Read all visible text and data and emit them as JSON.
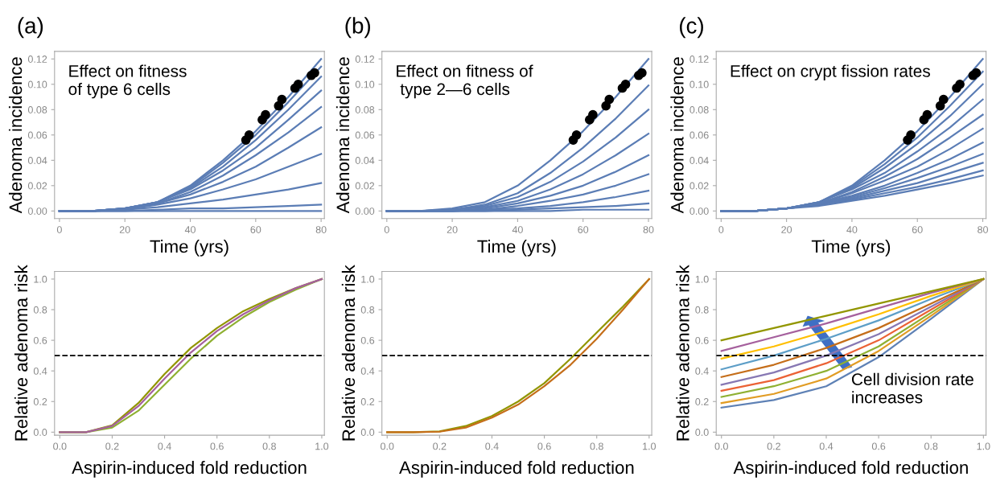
{
  "chart_data": [
    {
      "type": "line",
      "title": "(a)",
      "subtitle": "Effect on fitness\nof type 6 cells",
      "xlabel": "Time (yrs)",
      "ylabel": "Adenoma incidence",
      "xlim": [
        -1.5,
        81
      ],
      "ylim": [
        -0.006,
        0.126
      ],
      "xticks": [
        0,
        20,
        40,
        60,
        80
      ],
      "yticks": [
        {
          "value": 0,
          "label": "0.00"
        },
        {
          "value": 0.02,
          "label": "0.02"
        },
        {
          "value": 0.04,
          "label": "0.04"
        },
        {
          "value": 0.06,
          "label": "0.06"
        },
        {
          "value": 0.08,
          "label": "0.08"
        },
        {
          "value": 0.1,
          "label": "0.10"
        },
        {
          "value": 0.12,
          "label": "0.12"
        }
      ],
      "marker": "none",
      "line_style": "solid",
      "x": [
        0,
        10,
        20,
        30,
        40,
        50,
        60,
        70,
        80
      ],
      "series": [
        {
          "color": "#5b7db5",
          "values": [
            0,
            0,
            0.002,
            0.007,
            0.02,
            0.04,
            0.063,
            0.09,
            0.12
          ]
        },
        {
          "color": "#5b7db5",
          "values": [
            0,
            0,
            0.002,
            0.007,
            0.019,
            0.038,
            0.06,
            0.086,
            0.114
          ]
        },
        {
          "color": "#5b7db5",
          "values": [
            0,
            0,
            0.002,
            0.007,
            0.018,
            0.035,
            0.056,
            0.08,
            0.106
          ]
        },
        {
          "color": "#5b7db5",
          "values": [
            0,
            0,
            0.002,
            0.007,
            0.017,
            0.032,
            0.05,
            0.072,
            0.095
          ]
        },
        {
          "color": "#5b7db5",
          "values": [
            0,
            0,
            0.002,
            0.006,
            0.015,
            0.028,
            0.044,
            0.062,
            0.082
          ]
        },
        {
          "color": "#5b7db5",
          "values": [
            0,
            0,
            0.002,
            0.006,
            0.013,
            0.023,
            0.035,
            0.05,
            0.066
          ]
        },
        {
          "color": "#5b7db5",
          "values": [
            0,
            0,
            0.001,
            0.005,
            0.01,
            0.017,
            0.025,
            0.035,
            0.045
          ]
        },
        {
          "color": "#5b7db5",
          "values": [
            0,
            0,
            0.001,
            0.003,
            0.006,
            0.009,
            0.013,
            0.017,
            0.022
          ]
        },
        {
          "color": "#5b7db5",
          "values": [
            0,
            0,
            0,
            0.001,
            0.002,
            0.002,
            0.003,
            0.004,
            0.005
          ]
        },
        {
          "color": "#5b7db5",
          "values": [
            0,
            0,
            0,
            0,
            0,
            0,
            0,
            0,
            0
          ]
        },
        {
          "type": "scatter",
          "marker": "circle",
          "color": "#000000",
          "x": [
            57,
            58,
            62,
            63,
            67,
            68,
            72,
            73,
            77,
            78
          ],
          "values": [
            0.056,
            0.06,
            0.072,
            0.076,
            0.083,
            0.088,
            0.097,
            0.1,
            0.107,
            0.109
          ]
        }
      ]
    },
    {
      "type": "line",
      "title": "(b)",
      "subtitle": "Effect on fitness of\n type 2—6 cells",
      "xlabel": "Time (yrs)",
      "ylabel": "Adenoma incidence",
      "xlim": [
        -1.5,
        81
      ],
      "ylim": [
        -0.006,
        0.126
      ],
      "xticks": [
        0,
        20,
        40,
        60,
        80
      ],
      "yticks": [
        {
          "value": 0,
          "label": "0.00"
        },
        {
          "value": 0.02,
          "label": "0.02"
        },
        {
          "value": 0.04,
          "label": "0.04"
        },
        {
          "value": 0.06,
          "label": "0.06"
        },
        {
          "value": 0.08,
          "label": "0.08"
        },
        {
          "value": 0.1,
          "label": "0.10"
        },
        {
          "value": 0.12,
          "label": "0.12"
        }
      ],
      "marker": "none",
      "line_style": "solid",
      "x": [
        0,
        10,
        20,
        30,
        40,
        50,
        60,
        70,
        80
      ],
      "series": [
        {
          "color": "#5b7db5",
          "values": [
            0,
            0,
            0.002,
            0.007,
            0.02,
            0.04,
            0.063,
            0.09,
            0.12
          ]
        },
        {
          "color": "#5b7db5",
          "values": [
            0,
            0,
            0.001,
            0.005,
            0.014,
            0.03,
            0.05,
            0.073,
            0.099
          ]
        },
        {
          "color": "#5b7db5",
          "values": [
            0,
            0,
            0.001,
            0.004,
            0.011,
            0.023,
            0.039,
            0.058,
            0.08
          ]
        },
        {
          "color": "#5b7db5",
          "values": [
            0,
            0,
            0.001,
            0.003,
            0.008,
            0.017,
            0.029,
            0.044,
            0.061
          ]
        },
        {
          "color": "#5b7db5",
          "values": [
            0,
            0,
            0,
            0.002,
            0.006,
            0.012,
            0.02,
            0.031,
            0.044
          ]
        },
        {
          "color": "#5b7db5",
          "values": [
            0,
            0,
            0,
            0.001,
            0.004,
            0.008,
            0.013,
            0.02,
            0.029
          ]
        },
        {
          "color": "#5b7db5",
          "values": [
            0,
            0,
            0,
            0.001,
            0.002,
            0.004,
            0.007,
            0.011,
            0.016
          ]
        },
        {
          "color": "#5b7db5",
          "values": [
            0,
            0,
            0,
            0,
            0.001,
            0.002,
            0.003,
            0.004,
            0.006
          ]
        },
        {
          "color": "#5b7db5",
          "values": [
            0,
            0,
            0,
            0,
            0,
            0,
            0.001,
            0.001,
            0.001
          ]
        },
        {
          "type": "scatter",
          "marker": "circle",
          "color": "#000000",
          "x": [
            57,
            58,
            62,
            63,
            67,
            68,
            72,
            73,
            77,
            78
          ],
          "values": [
            0.056,
            0.06,
            0.072,
            0.076,
            0.083,
            0.088,
            0.097,
            0.1,
            0.107,
            0.109
          ]
        }
      ]
    },
    {
      "type": "line",
      "title": "(c)",
      "subtitle": "Effect on crypt fission rates",
      "xlabel": "Time (yrs)",
      "ylabel": "Adenoma incidence",
      "xlim": [
        -1.5,
        81
      ],
      "ylim": [
        -0.006,
        0.126
      ],
      "xticks": [
        0,
        20,
        40,
        60,
        80
      ],
      "yticks": [
        {
          "value": 0,
          "label": "0.00"
        },
        {
          "value": 0.02,
          "label": "0.02"
        },
        {
          "value": 0.04,
          "label": "0.04"
        },
        {
          "value": 0.06,
          "label": "0.06"
        },
        {
          "value": 0.08,
          "label": "0.08"
        },
        {
          "value": 0.1,
          "label": "0.10"
        },
        {
          "value": 0.12,
          "label": "0.12"
        }
      ],
      "marker": "none",
      "line_style": "solid",
      "x": [
        0,
        10,
        20,
        30,
        40,
        50,
        60,
        70,
        80
      ],
      "series": [
        {
          "color": "#5b7db5",
          "values": [
            0,
            0,
            0.002,
            0.007,
            0.02,
            0.04,
            0.063,
            0.09,
            0.12
          ]
        },
        {
          "color": "#5b7db5",
          "values": [
            0,
            0,
            0.002,
            0.007,
            0.019,
            0.037,
            0.058,
            0.083,
            0.11
          ]
        },
        {
          "color": "#5b7db5",
          "values": [
            0,
            0,
            0.002,
            0.007,
            0.018,
            0.034,
            0.053,
            0.075,
            0.1
          ]
        },
        {
          "color": "#5b7db5",
          "values": [
            0,
            0,
            0.002,
            0.007,
            0.017,
            0.03,
            0.047,
            0.066,
            0.088
          ]
        },
        {
          "color": "#5b7db5",
          "values": [
            0,
            0,
            0.002,
            0.006,
            0.015,
            0.027,
            0.041,
            0.058,
            0.076
          ]
        },
        {
          "color": "#5b7db5",
          "values": [
            0,
            0,
            0.002,
            0.006,
            0.014,
            0.024,
            0.035,
            0.049,
            0.065
          ]
        },
        {
          "color": "#5b7db5",
          "values": [
            0,
            0,
            0.002,
            0.006,
            0.012,
            0.02,
            0.03,
            0.041,
            0.054
          ]
        },
        {
          "color": "#5b7db5",
          "values": [
            0,
            0,
            0.002,
            0.005,
            0.011,
            0.018,
            0.026,
            0.035,
            0.045
          ]
        },
        {
          "color": "#5b7db5",
          "values": [
            0,
            0,
            0.002,
            0.005,
            0.01,
            0.016,
            0.022,
            0.03,
            0.038
          ]
        },
        {
          "color": "#5b7db5",
          "values": [
            0,
            0,
            0.002,
            0.005,
            0.009,
            0.014,
            0.019,
            0.025,
            0.032
          ]
        },
        {
          "color": "#5b7db5",
          "values": [
            0,
            0,
            0.002,
            0.004,
            0.008,
            0.012,
            0.017,
            0.022,
            0.028
          ]
        },
        {
          "type": "scatter",
          "marker": "circle",
          "color": "#000000",
          "x": [
            57,
            58,
            62,
            63,
            67,
            68,
            72,
            73,
            77,
            78
          ],
          "values": [
            0.056,
            0.06,
            0.072,
            0.076,
            0.083,
            0.088,
            0.097,
            0.1,
            0.107,
            0.109
          ]
        }
      ]
    },
    {
      "type": "line",
      "xlabel": "Aspirin-induced fold reduction",
      "ylabel": "Relative adenoma risk",
      "xlim": [
        -0.02,
        1.01
      ],
      "ylim": [
        -0.02,
        1.05
      ],
      "xticks": [
        {
          "value": 0,
          "label": "0.0"
        },
        {
          "value": 0.2,
          "label": "0.2"
        },
        {
          "value": 0.4,
          "label": "0.4"
        },
        {
          "value": 0.6,
          "label": "0.6"
        },
        {
          "value": 0.8,
          "label": "0.8"
        },
        {
          "value": 1,
          "label": "1.0"
        }
      ],
      "yticks": [
        {
          "value": 0,
          "label": "0.0"
        },
        {
          "value": 0.2,
          "label": "0.2"
        },
        {
          "value": 0.4,
          "label": "0.4"
        },
        {
          "value": 0.6,
          "label": "0.6"
        },
        {
          "value": 0.8,
          "label": "0.8"
        },
        {
          "value": 1,
          "label": "1.0"
        }
      ],
      "marker": "none",
      "line_style": "solid",
      "x": [
        0,
        0.1,
        0.2,
        0.3,
        0.4,
        0.5,
        0.6,
        0.7,
        0.8,
        0.9,
        1.0
      ],
      "ref_lines": [
        {
          "axis": "y",
          "value": 0.5,
          "color": "#000000",
          "line_style": "dashed"
        }
      ],
      "series": [
        {
          "color": "#929600",
          "values": [
            0,
            0,
            0.045,
            0.19,
            0.38,
            0.55,
            0.68,
            0.79,
            0.87,
            0.94,
            1.0
          ]
        },
        {
          "color": "#8fb032",
          "values": [
            0,
            0,
            0.03,
            0.14,
            0.31,
            0.48,
            0.63,
            0.75,
            0.85,
            0.93,
            1.0
          ]
        },
        {
          "color": "#a5609d",
          "values": [
            0,
            0,
            0.04,
            0.17,
            0.35,
            0.52,
            0.66,
            0.77,
            0.86,
            0.94,
            1.0
          ]
        }
      ]
    },
    {
      "type": "line",
      "xlabel": "Aspirin-induced fold reduction",
      "ylabel": "Relative adenoma risk",
      "xlim": [
        -0.02,
        1.01
      ],
      "ylim": [
        -0.02,
        1.05
      ],
      "xticks": [
        {
          "value": 0,
          "label": "0.0"
        },
        {
          "value": 0.2,
          "label": "0.2"
        },
        {
          "value": 0.4,
          "label": "0.4"
        },
        {
          "value": 0.6,
          "label": "0.6"
        },
        {
          "value": 0.8,
          "label": "0.8"
        },
        {
          "value": 1,
          "label": "1.0"
        }
      ],
      "yticks": [
        {
          "value": 0,
          "label": "0.0"
        },
        {
          "value": 0.2,
          "label": "0.2"
        },
        {
          "value": 0.4,
          "label": "0.4"
        },
        {
          "value": 0.6,
          "label": "0.6"
        },
        {
          "value": 0.8,
          "label": "0.8"
        },
        {
          "value": 1,
          "label": "1.0"
        }
      ],
      "marker": "none",
      "line_style": "solid",
      "x": [
        0,
        0.1,
        0.2,
        0.3,
        0.4,
        0.5,
        0.6,
        0.7,
        0.8,
        0.9,
        1.0
      ],
      "ref_lines": [
        {
          "axis": "y",
          "value": 0.5,
          "color": "#000000",
          "line_style": "dashed"
        }
      ],
      "series": [
        {
          "color": "#929600",
          "values": [
            0,
            0,
            0.005,
            0.04,
            0.105,
            0.2,
            0.32,
            0.48,
            0.65,
            0.82,
            1.0
          ]
        },
        {
          "color": "#c56e1a",
          "values": [
            0,
            0,
            0.003,
            0.03,
            0.095,
            0.18,
            0.3,
            0.44,
            0.61,
            0.8,
            1.0
          ]
        }
      ]
    },
    {
      "type": "line",
      "xlabel": "Aspirin-induced fold reduction",
      "ylabel": "Relative adenoma risk",
      "xlim": [
        -0.02,
        1.01
      ],
      "ylim": [
        -0.02,
        1.05
      ],
      "xticks": [
        {
          "value": 0,
          "label": "0.0"
        },
        {
          "value": 0.2,
          "label": "0.2"
        },
        {
          "value": 0.4,
          "label": "0.4"
        },
        {
          "value": 0.6,
          "label": "0.6"
        },
        {
          "value": 0.8,
          "label": "0.8"
        },
        {
          "value": 1,
          "label": "1.0"
        }
      ],
      "yticks": [
        {
          "value": 0,
          "label": "0.0"
        },
        {
          "value": 0.2,
          "label": "0.2"
        },
        {
          "value": 0.4,
          "label": "0.4"
        },
        {
          "value": 0.6,
          "label": "0.6"
        },
        {
          "value": 0.8,
          "label": "0.8"
        },
        {
          "value": 1,
          "label": "1.0"
        }
      ],
      "marker": "none",
      "line_style": "solid",
      "x": [
        0,
        0.2,
        0.4,
        0.6,
        0.8,
        1.0
      ],
      "ref_lines": [
        {
          "axis": "y",
          "value": 0.5,
          "color": "#000000",
          "line_style": "dashed"
        }
      ],
      "annotations": [
        "Cell division rate\nincreases"
      ],
      "series": [
        {
          "color": "#5e81b5",
          "values": [
            0.16,
            0.21,
            0.3,
            0.49,
            0.74,
            1.0
          ]
        },
        {
          "color": "#e19c24",
          "values": [
            0.19,
            0.25,
            0.35,
            0.53,
            0.76,
            1.0
          ]
        },
        {
          "color": "#8fb032",
          "values": [
            0.23,
            0.3,
            0.4,
            0.56,
            0.78,
            1.0
          ]
        },
        {
          "color": "#eb6235",
          "values": [
            0.27,
            0.34,
            0.45,
            0.6,
            0.8,
            1.0
          ]
        },
        {
          "color": "#8778b3",
          "values": [
            0.31,
            0.39,
            0.5,
            0.64,
            0.82,
            1.0
          ]
        },
        {
          "color": "#c56e1a",
          "values": [
            0.36,
            0.44,
            0.55,
            0.68,
            0.84,
            1.0
          ]
        },
        {
          "color": "#5d9ec7",
          "values": [
            0.41,
            0.5,
            0.61,
            0.73,
            0.87,
            1.0
          ]
        },
        {
          "color": "#ffbf00",
          "values": [
            0.48,
            0.56,
            0.66,
            0.77,
            0.89,
            1.0
          ]
        },
        {
          "color": "#a5609d",
          "values": [
            0.53,
            0.62,
            0.71,
            0.81,
            0.91,
            1.0
          ]
        },
        {
          "color": "#929600",
          "values": [
            0.6,
            0.68,
            0.76,
            0.84,
            0.92,
            1.0
          ]
        }
      ]
    }
  ]
}
